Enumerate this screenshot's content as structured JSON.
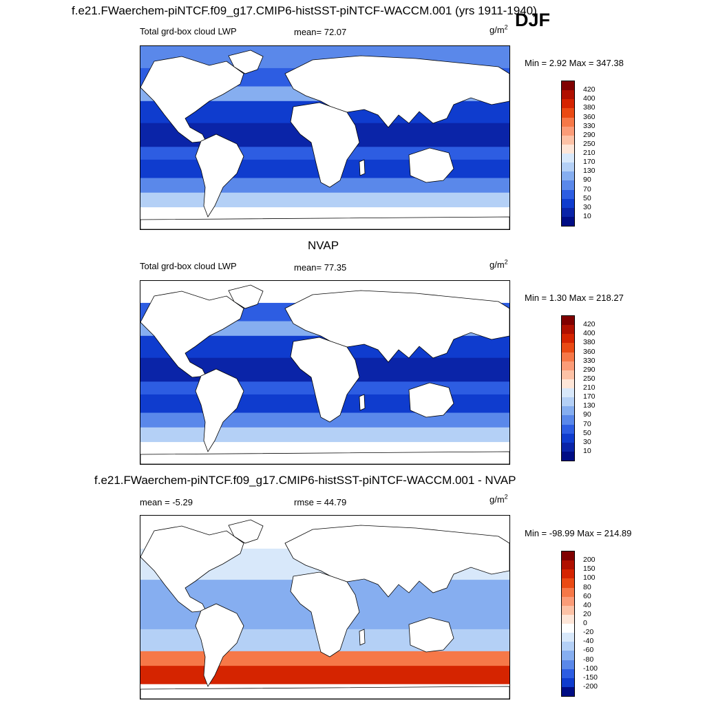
{
  "header": {
    "run_title": "f.e21.FWaerchem-piNTCF.f09_g17.CMIP6-histSST-piNTCF-WACCM.001 (yrs 1911-1940)",
    "season": "DJF"
  },
  "panels": [
    {
      "title": "",
      "left_label": "Total grd-box cloud LWP",
      "stat_label": "mean=  72.07",
      "unit_base": "g/m",
      "unit_exp": "2",
      "minmax": "Min =   2.92 Max = 347.38",
      "colorbar": {
        "ticks": [
          "420",
          "400",
          "380",
          "360",
          "330",
          "290",
          "250",
          "210",
          "170",
          "130",
          "90",
          "70",
          "50",
          "30",
          "10"
        ],
        "colors": [
          "#800000",
          "#b01000",
          "#d52400",
          "#ea4a14",
          "#f67848",
          "#fb9c78",
          "#fdc2a6",
          "#fee6d8",
          "#d8e8fa",
          "#b4d0f6",
          "#86aef0",
          "#5a88ea",
          "#2d5de2",
          "#0f3cce",
          "#0a24a8",
          "#000d85"
        ]
      }
    },
    {
      "title": "NVAP",
      "left_label": "Total grd-box cloud LWP",
      "stat_label": "mean=  77.35",
      "unit_base": "g/m",
      "unit_exp": "2",
      "minmax": "Min =   1.30 Max = 218.27",
      "colorbar": {
        "ticks": [
          "420",
          "400",
          "380",
          "360",
          "330",
          "290",
          "250",
          "210",
          "170",
          "130",
          "90",
          "70",
          "50",
          "30",
          "10"
        ],
        "colors": [
          "#800000",
          "#b01000",
          "#d52400",
          "#ea4a14",
          "#f67848",
          "#fb9c78",
          "#fdc2a6",
          "#fee6d8",
          "#d8e8fa",
          "#b4d0f6",
          "#86aef0",
          "#5a88ea",
          "#2d5de2",
          "#0f3cce",
          "#0a24a8",
          "#000d85"
        ]
      }
    },
    {
      "title": "f.e21.FWaerchem-piNTCF.f09_g17.CMIP6-histSST-piNTCF-WACCM.001 - NVAP",
      "left_label": "mean =  -5.29",
      "stat_label": "rmse =  44.79",
      "unit_base": "g/m",
      "unit_exp": "2",
      "minmax": "Min = -98.99 Max = 214.89",
      "colorbar": {
        "ticks": [
          "200",
          "150",
          "100",
          "80",
          "60",
          "40",
          "20",
          "0",
          "-20",
          "-40",
          "-60",
          "-80",
          "-100",
          "-150",
          "-200"
        ],
        "colors": [
          "#800000",
          "#b01000",
          "#d52400",
          "#ea4a14",
          "#f67848",
          "#fb9c78",
          "#fdc2a6",
          "#fee6d8",
          "#ffffff",
          "#d8e8fa",
          "#b4d0f6",
          "#86aef0",
          "#5a88ea",
          "#2d5de2",
          "#0f3cce",
          "#000d85"
        ]
      }
    }
  ]
}
